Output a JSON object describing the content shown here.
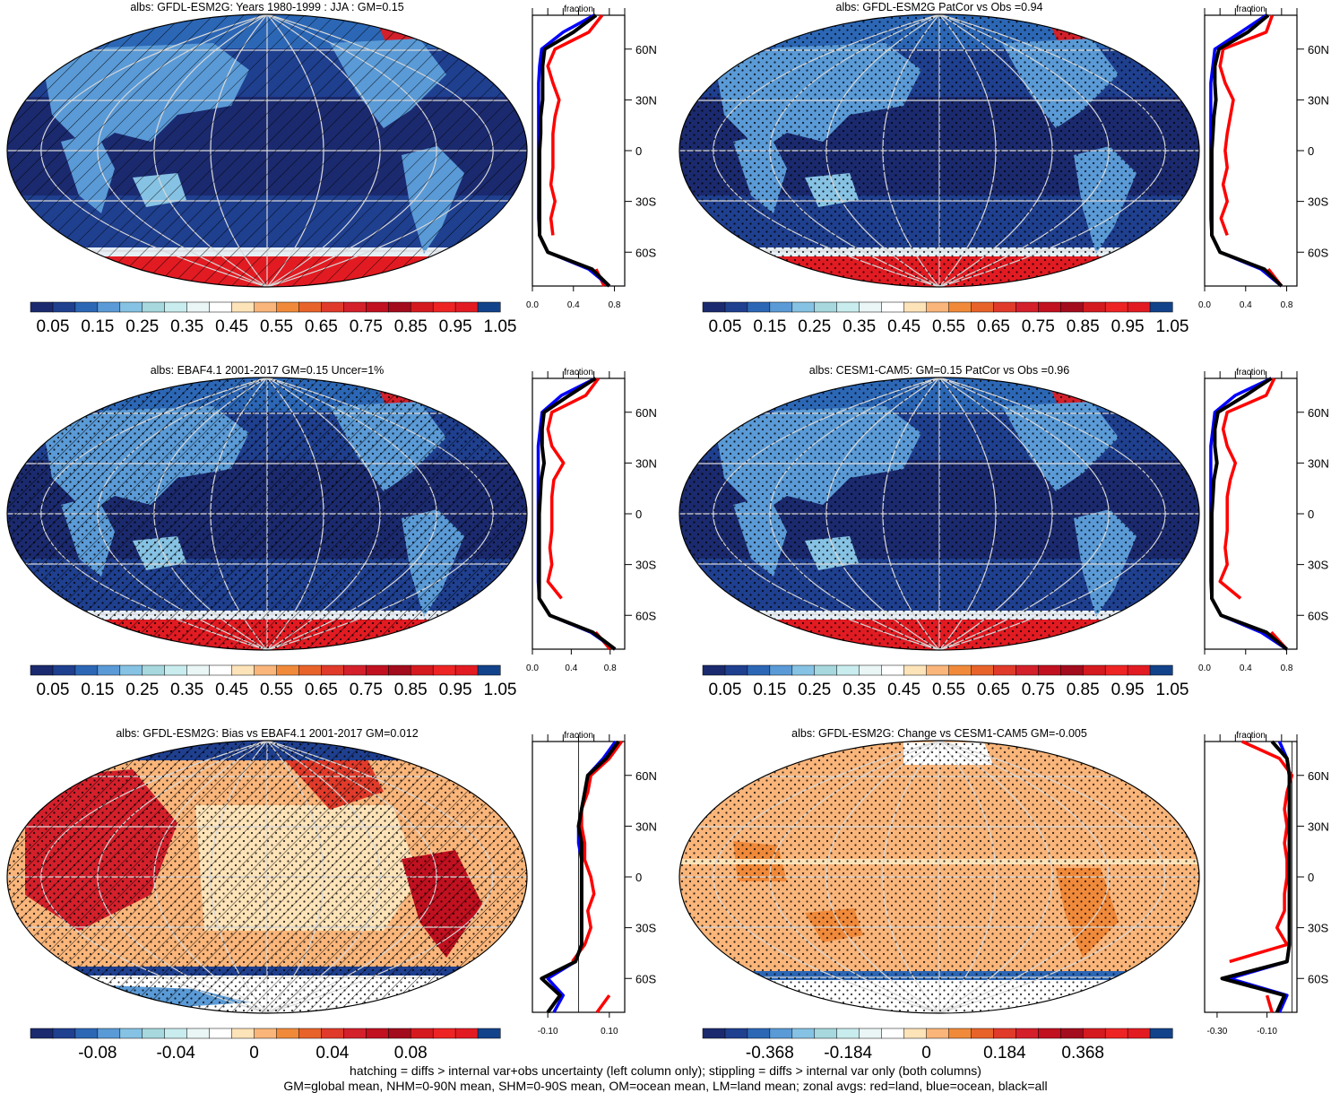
{
  "colors": {
    "land": "#ff0000",
    "ocean": "#0000ff",
    "all": "#000000",
    "abs_scale": [
      "#1b2a6e",
      "#1f3f8f",
      "#2c67b6",
      "#5a9ad6",
      "#86c2e3",
      "#a6d8de",
      "#c9ecee",
      "#eaf6f6",
      "#ffffff",
      "#fde3b8",
      "#f9b57a",
      "#f08a3a",
      "#e8632a",
      "#e03a2a",
      "#d3202b",
      "#c1101f",
      "#a30c1d",
      "#d51a1f",
      "#ee2424",
      "#e21b22",
      "#12428a"
    ],
    "bias_scale": [
      "#1b2a6e",
      "#1f3f8f",
      "#2c67b6",
      "#5a9ad6",
      "#86c2e3",
      "#a6d8de",
      "#c9ecee",
      "#eaf6f6",
      "#ffffff",
      "#fde3b8",
      "#f9b57a",
      "#f08a3a",
      "#e8632a",
      "#e03a2a",
      "#d3202b",
      "#c1101f",
      "#a30c1d",
      "#d51a1f",
      "#ee2424",
      "#e21b22",
      "#12428a"
    ]
  },
  "panels": [
    {
      "title": "albs: GFDL-ESM2G: Years 1980-1999 : JJA : GM=0.15",
      "kind": "abs",
      "hatched": true,
      "stipple": false,
      "cb_labels": [
        "0.05",
        "0.15",
        "0.25",
        "0.35",
        "0.45",
        "0.55",
        "0.65",
        "0.75",
        "0.85",
        "0.95",
        "1.05"
      ],
      "zonal_ticks": [
        "0.0",
        "0.4",
        "0.8"
      ],
      "zonal_title": "fraction"
    },
    {
      "title": "albs: GFDL-ESM2G PatCor vs Obs =0.94",
      "kind": "abs",
      "hatched": false,
      "stipple": true,
      "cb_labels": [
        "0.05",
        "0.15",
        "0.25",
        "0.35",
        "0.45",
        "0.55",
        "0.65",
        "0.75",
        "0.85",
        "0.95",
        "1.05"
      ],
      "zonal_ticks": [
        "0.0",
        "0.4",
        "0.8"
      ],
      "zonal_title": "fraction"
    },
    {
      "title": "albs: EBAF4.1 2001-2017 GM=0.15 Uncer=1%",
      "kind": "abs",
      "hatched": true,
      "stipple": true,
      "cb_labels": [
        "0.05",
        "0.15",
        "0.25",
        "0.35",
        "0.45",
        "0.55",
        "0.65",
        "0.75",
        "0.85",
        "0.95",
        "1.05"
      ],
      "zonal_ticks": [
        "0.0",
        "0.4",
        "0.8"
      ],
      "zonal_title": "fraction"
    },
    {
      "title": "albs: CESM1-CAM5: GM=0.15 PatCor vs Obs =0.96",
      "kind": "abs",
      "hatched": false,
      "stipple": true,
      "cb_labels": [
        "0.05",
        "0.15",
        "0.25",
        "0.35",
        "0.45",
        "0.55",
        "0.65",
        "0.75",
        "0.85",
        "0.95",
        "1.05"
      ],
      "zonal_ticks": [
        "0.0",
        "0.4",
        "0.8"
      ],
      "zonal_title": "fraction"
    },
    {
      "title": "albs: GFDL-ESM2G: Bias vs EBAF4.1 2001-2017 GM=0.012",
      "kind": "bias",
      "hatched": true,
      "stipple": true,
      "cb_labels": [
        "-0.08",
        "-0.04",
        "0",
        "0.04",
        "0.08"
      ],
      "zonal_ticks": [
        "-0.10",
        "0.10"
      ],
      "zonal_title": "fraction"
    },
    {
      "title": "albs: GFDL-ESM2G: Change vs CESM1-CAM5 GM=-0.005",
      "kind": "change",
      "hatched": false,
      "stipple": true,
      "cb_labels": [
        "-0.368",
        "-0.184",
        "0",
        "0.184",
        "0.368"
      ],
      "zonal_ticks": [
        "-0.30",
        "-0.10"
      ],
      "zonal_title": "fraction"
    }
  ],
  "lat_labels": [
    "60N",
    "30N",
    "0",
    "30S",
    "60S"
  ],
  "chart_data": [
    {
      "type": "line",
      "title": "albs: GFDL-ESM2G: Years 1980-1999 : JJA : GM=0.15",
      "xlabel": "fraction",
      "xlim": [
        0,
        0.9
      ],
      "y_ticks": [
        "60N",
        "30N",
        "0",
        "30S",
        "60S"
      ],
      "y": [
        80,
        70,
        60,
        50,
        40,
        30,
        20,
        10,
        0,
        -10,
        -20,
        -30,
        -40,
        -50,
        -60,
        -70,
        -80
      ],
      "series": [
        {
          "name": "land",
          "values": [
            0.68,
            0.55,
            0.22,
            0.15,
            0.2,
            0.26,
            0.22,
            0.2,
            0.2,
            0.2,
            0.18,
            0.22,
            0.18,
            0.2,
            null,
            0.62,
            0.7
          ]
        },
        {
          "name": "ocean",
          "values": [
            0.6,
            0.3,
            0.09,
            0.07,
            0.06,
            0.06,
            0.06,
            0.06,
            0.06,
            0.06,
            0.06,
            0.06,
            0.06,
            0.07,
            0.15,
            0.55,
            0.75
          ]
        },
        {
          "name": "all",
          "values": [
            0.62,
            0.4,
            0.12,
            0.1,
            0.1,
            0.1,
            0.08,
            0.08,
            0.07,
            0.07,
            0.07,
            0.07,
            0.07,
            0.07,
            0.15,
            0.58,
            0.75
          ]
        }
      ]
    },
    {
      "type": "line",
      "title": "albs: GFDL-ESM2G PatCor vs Obs =0.94",
      "xlabel": "fraction",
      "xlim": [
        0,
        0.9
      ],
      "y_ticks": [
        "60N",
        "30N",
        "0",
        "30S",
        "60S"
      ],
      "y": [
        80,
        70,
        60,
        50,
        40,
        30,
        20,
        10,
        0,
        -10,
        -20,
        -30,
        -40,
        -50,
        -60,
        -70,
        -80
      ],
      "series": [
        {
          "name": "land",
          "values": [
            0.66,
            0.6,
            0.18,
            0.15,
            0.2,
            0.28,
            0.25,
            0.22,
            0.2,
            0.22,
            0.18,
            0.22,
            0.16,
            0.22,
            null,
            0.62,
            0.75
          ]
        },
        {
          "name": "ocean",
          "values": [
            0.6,
            0.35,
            0.1,
            0.08,
            0.06,
            0.06,
            0.06,
            0.06,
            0.06,
            0.06,
            0.06,
            0.06,
            0.06,
            0.07,
            0.15,
            0.55,
            0.75
          ]
        },
        {
          "name": "all",
          "values": [
            0.62,
            0.42,
            0.14,
            0.1,
            0.1,
            0.11,
            0.09,
            0.08,
            0.07,
            0.07,
            0.07,
            0.07,
            0.07,
            0.07,
            0.15,
            0.58,
            0.75
          ]
        }
      ]
    },
    {
      "type": "line",
      "title": "albs: EBAF4.1 2001-2017 GM=0.15 Uncer=1%",
      "xlabel": "fraction",
      "xlim": [
        0,
        0.95
      ],
      "y_ticks": [
        "60N",
        "30N",
        "0",
        "30S",
        "60S"
      ],
      "y": [
        80,
        70,
        60,
        50,
        40,
        30,
        20,
        10,
        0,
        -10,
        -20,
        -30,
        -40,
        -50,
        -60,
        -70,
        -80
      ],
      "series": [
        {
          "name": "land",
          "values": [
            0.68,
            0.55,
            0.2,
            0.16,
            0.2,
            0.32,
            0.22,
            0.2,
            0.2,
            0.2,
            0.18,
            0.2,
            0.16,
            0.3,
            null,
            0.65,
            0.8
          ]
        },
        {
          "name": "ocean",
          "values": [
            0.65,
            0.3,
            0.1,
            0.08,
            0.06,
            0.06,
            0.06,
            0.06,
            0.06,
            0.06,
            0.06,
            0.06,
            0.06,
            0.07,
            0.18,
            0.6,
            0.85
          ]
        },
        {
          "name": "all",
          "values": [
            0.65,
            0.38,
            0.12,
            0.1,
            0.1,
            0.12,
            0.09,
            0.08,
            0.07,
            0.07,
            0.07,
            0.07,
            0.07,
            0.07,
            0.18,
            0.62,
            0.85
          ]
        }
      ]
    },
    {
      "type": "line",
      "title": "albs: CESM1-CAM5: GM=0.15 PatCor vs Obs =0.96",
      "xlabel": "fraction",
      "xlim": [
        0,
        0.9
      ],
      "y_ticks": [
        "60N",
        "30N",
        "0",
        "30S",
        "60S"
      ],
      "y": [
        80,
        70,
        60,
        50,
        40,
        30,
        20,
        10,
        0,
        -10,
        -20,
        -30,
        -40,
        -50,
        -60,
        -70,
        -80
      ],
      "series": [
        {
          "name": "land",
          "values": [
            0.68,
            0.6,
            0.22,
            0.18,
            0.22,
            0.3,
            0.25,
            0.22,
            0.22,
            0.22,
            0.2,
            0.22,
            0.15,
            0.35,
            null,
            0.65,
            0.8
          ]
        },
        {
          "name": "ocean",
          "values": [
            0.65,
            0.3,
            0.1,
            0.08,
            0.06,
            0.06,
            0.06,
            0.06,
            0.06,
            0.06,
            0.06,
            0.06,
            0.06,
            0.07,
            0.16,
            0.55,
            0.8
          ]
        },
        {
          "name": "all",
          "values": [
            0.65,
            0.4,
            0.13,
            0.1,
            0.1,
            0.12,
            0.09,
            0.08,
            0.07,
            0.07,
            0.07,
            0.07,
            0.07,
            0.07,
            0.16,
            0.6,
            0.8
          ]
        }
      ]
    },
    {
      "type": "line",
      "title": "albs: GFDL-ESM2G: Bias vs EBAF4.1 2001-2017 GM=0.012",
      "xlabel": "fraction",
      "xlim": [
        -0.15,
        0.15
      ],
      "y_ticks": [
        "60N",
        "30N",
        "0",
        "30S",
        "60S"
      ],
      "y": [
        80,
        70,
        60,
        50,
        40,
        30,
        20,
        10,
        0,
        -10,
        -20,
        -30,
        -40,
        -50,
        -60,
        -70,
        -80
      ],
      "series": [
        {
          "name": "land",
          "values": [
            0.14,
            0.1,
            0.04,
            0.03,
            0.01,
            0.01,
            0.02,
            0.02,
            0.04,
            0.05,
            0.03,
            0.04,
            0.02,
            -0.02,
            null,
            0.1,
            0.06
          ]
        },
        {
          "name": "ocean",
          "values": [
            0.12,
            0.08,
            0.03,
            0.02,
            0.01,
            0.0,
            0.0,
            0.01,
            0.01,
            0.01,
            0.01,
            0.01,
            0.01,
            -0.01,
            -0.1,
            -0.05,
            -0.08
          ]
        },
        {
          "name": "all",
          "values": [
            0.13,
            0.09,
            0.03,
            0.02,
            0.01,
            0.0,
            0.01,
            0.01,
            0.01,
            0.01,
            0.01,
            0.01,
            0.01,
            -0.01,
            -0.12,
            -0.06,
            -0.1
          ]
        }
      ]
    },
    {
      "type": "line",
      "title": "albs: GFDL-ESM2G: Change vs CESM1-CAM5 GM=-0.005",
      "xlabel": "fraction",
      "xlim": [
        -0.35,
        0.02
      ],
      "y_ticks": [
        "60N",
        "30N",
        "0",
        "30S",
        "60S"
      ],
      "y": [
        80,
        70,
        60,
        50,
        40,
        30,
        20,
        10,
        0,
        -10,
        -20,
        -30,
        -40,
        -50,
        -60,
        -70,
        -80
      ],
      "series": [
        {
          "name": "land",
          "values": [
            -0.2,
            -0.05,
            0.0,
            -0.02,
            -0.03,
            -0.02,
            -0.03,
            -0.02,
            -0.02,
            -0.03,
            -0.03,
            -0.06,
            -0.02,
            -0.25,
            null,
            -0.1,
            -0.08
          ]
        },
        {
          "name": "ocean",
          "values": [
            -0.05,
            -0.02,
            -0.01,
            -0.01,
            -0.01,
            -0.01,
            -0.01,
            -0.01,
            -0.01,
            -0.01,
            -0.01,
            -0.01,
            -0.01,
            -0.02,
            -0.25,
            -0.02,
            -0.05
          ]
        },
        {
          "name": "all",
          "values": [
            -0.08,
            -0.02,
            -0.01,
            -0.01,
            -0.01,
            -0.01,
            -0.01,
            -0.01,
            -0.01,
            -0.01,
            -0.01,
            -0.01,
            -0.01,
            -0.02,
            -0.28,
            -0.03,
            -0.06
          ]
        }
      ]
    }
  ],
  "footer": {
    "line1": "hatching = diffs > internal var+obs uncertainty (left column only); stippling = diffs > internal var only (both columns)",
    "line2": "GM=global mean, NHM=0-90N mean, SHM=0-90S mean, OM=ocean mean, LM=land mean; zonal avgs: red=land, blue=ocean, black=all"
  }
}
